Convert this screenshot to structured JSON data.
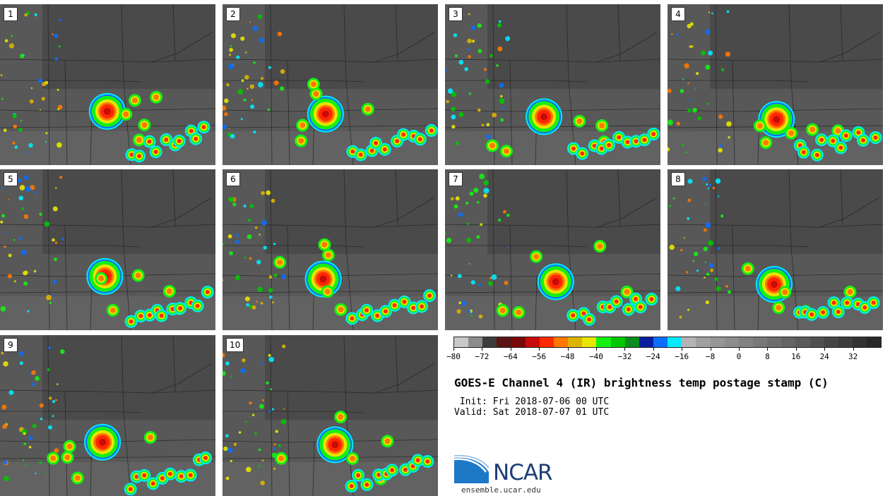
{
  "panels": [
    {
      "label": "1"
    },
    {
      "label": "2"
    },
    {
      "label": "3"
    },
    {
      "label": "4"
    },
    {
      "label": "5"
    },
    {
      "label": "6"
    },
    {
      "label": "7"
    },
    {
      "label": "8"
    },
    {
      "label": "9"
    },
    {
      "label": "10"
    }
  ],
  "colorbar": {
    "colors": [
      "#c8c8c8",
      "#8c8c8c",
      "#3c3c3c",
      "#5a1414",
      "#780a0a",
      "#c80a0a",
      "#ff2800",
      "#ff7800",
      "#dcb400",
      "#e6e600",
      "#14f014",
      "#00c800",
      "#0a8c1e",
      "#0a1ea0",
      "#0a6eff",
      "#00ebff",
      "#b4b4b4",
      "#a0a0a0",
      "#969696",
      "#8c8c8c",
      "#828282",
      "#787878",
      "#6e6e6e",
      "#646464",
      "#5a5a5a",
      "#505050",
      "#464646",
      "#3c3c3c",
      "#323232",
      "#282828"
    ],
    "ticks": [
      "−80",
      "−72",
      "−64",
      "−56",
      "−48",
      "−40",
      "−32",
      "−24",
      "−16",
      "−8",
      "0",
      "8",
      "16",
      "24",
      "32"
    ]
  },
  "title": "GOES-E Channel 4 (IR) brightness temp postage stamp (C)",
  "init_line": " Init: Fri 2018-07-06 00 UTC",
  "valid_line": "Valid: Sat 2018-07-07 01 UTC",
  "logo_text": "NCAR",
  "website": "ensemble.ucar.edu"
}
